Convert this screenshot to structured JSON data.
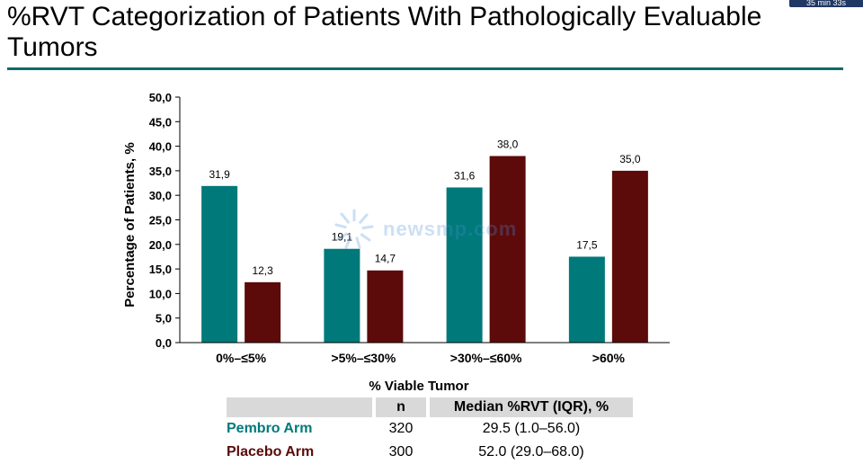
{
  "timer": "35 min 33s",
  "title": "%RVT Categorization of Patients With Pathologically Evaluable Tumors",
  "watermark": "newsmp.com",
  "colors": {
    "pembro": "#00797a",
    "placebo": "#5c0a0a",
    "rule": "#0d6b6b"
  },
  "chart_data": {
    "type": "bar",
    "title": "",
    "xlabel": "% Viable Tumor",
    "ylabel": "Percentage of Patients, %",
    "ylim": [
      0,
      50
    ],
    "yticks": [
      "0,0",
      "5,0",
      "10,0",
      "15,0",
      "20,0",
      "25,0",
      "30,0",
      "35,0",
      "40,0",
      "45,0",
      "50,0"
    ],
    "categories": [
      "0%–≤5%",
      ">5%–≤30%",
      ">30%–≤60%",
      ">60%"
    ],
    "series": [
      {
        "name": "Pembro Arm",
        "values": [
          31.9,
          19.1,
          31.6,
          17.5
        ],
        "labels": [
          "31,9",
          "19,1",
          "31,6",
          "17,5"
        ],
        "color": "#00797a"
      },
      {
        "name": "Placebo Arm",
        "values": [
          12.3,
          14.7,
          38.0,
          35.0
        ],
        "labels": [
          "12,3",
          "14,7",
          "38,0",
          "35,0"
        ],
        "color": "#5c0a0a"
      }
    ]
  },
  "table": {
    "headers": [
      "",
      "n",
      "Median %RVT (IQR), %"
    ],
    "rows": [
      {
        "label": "Pembro Arm",
        "n": "320",
        "median": "29.5 (1.0–56.0)",
        "color": "#00797a"
      },
      {
        "label": "Placebo Arm",
        "n": "300",
        "median": "52.0 (29.0–68.0)",
        "color": "#5c0a0a"
      }
    ]
  }
}
